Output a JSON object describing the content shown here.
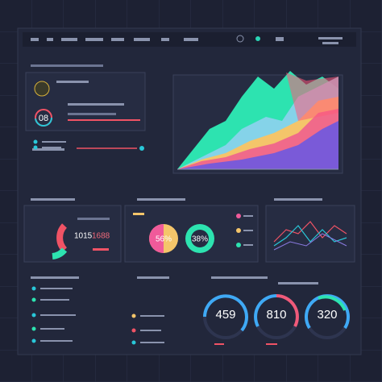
{
  "summary_card": {
    "value": "08"
  },
  "ratio_card": {
    "value_a": "1015",
    "value_b": "1688"
  },
  "donuts": [
    {
      "label": "56%"
    },
    {
      "label": "38%"
    }
  ],
  "gauges": [
    {
      "value": "459"
    },
    {
      "value": "810"
    },
    {
      "value": "320"
    }
  ]
}
